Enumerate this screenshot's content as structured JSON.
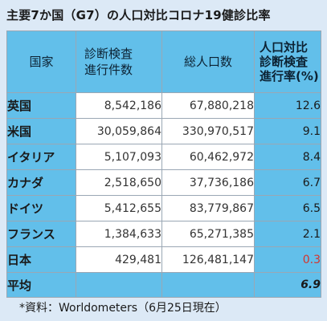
{
  "title": "主要7か国（G7）の人口対比コロナ19健診比率",
  "chart_data": {
    "type": "table",
    "columns": {
      "country": "国家",
      "tests": [
        "診断検査",
        "進行件数"
      ],
      "population": "総人口数",
      "rate": [
        "人口対比",
        "診断検査",
        "進行率(%)"
      ]
    },
    "rows": [
      {
        "name": "英国",
        "tests": "8,542,186",
        "population": "67,880,218",
        "rate": "12.6",
        "highlight": false
      },
      {
        "name": "米国",
        "tests": "30,059,864",
        "population": "330,970,517",
        "rate": "9.1",
        "highlight": false
      },
      {
        "name": "イタリア",
        "tests": "5,107,093",
        "population": "60,462,972",
        "rate": "8.4",
        "highlight": false
      },
      {
        "name": "カナダ",
        "tests": "2,518,650",
        "population": "37,736,186",
        "rate": "6.7",
        "highlight": false
      },
      {
        "name": "ドイツ",
        "tests": "5,412,655",
        "population": "83,779,867",
        "rate": "6.5",
        "highlight": false
      },
      {
        "name": "フランス",
        "tests": "1,384,633",
        "population": "65,271,385",
        "rate": "2.1",
        "highlight": false
      },
      {
        "name": "日本",
        "tests": "429,481",
        "population": "126,481,147",
        "rate": "0.3",
        "highlight": true
      }
    ],
    "average": {
      "name": "平均",
      "rate": "6.9"
    },
    "colors": {
      "header": "#62bfea",
      "highlight": "#d6342c",
      "background": "#dce9f6"
    }
  },
  "note": "*資料：Worldometers（6月25日現在）"
}
